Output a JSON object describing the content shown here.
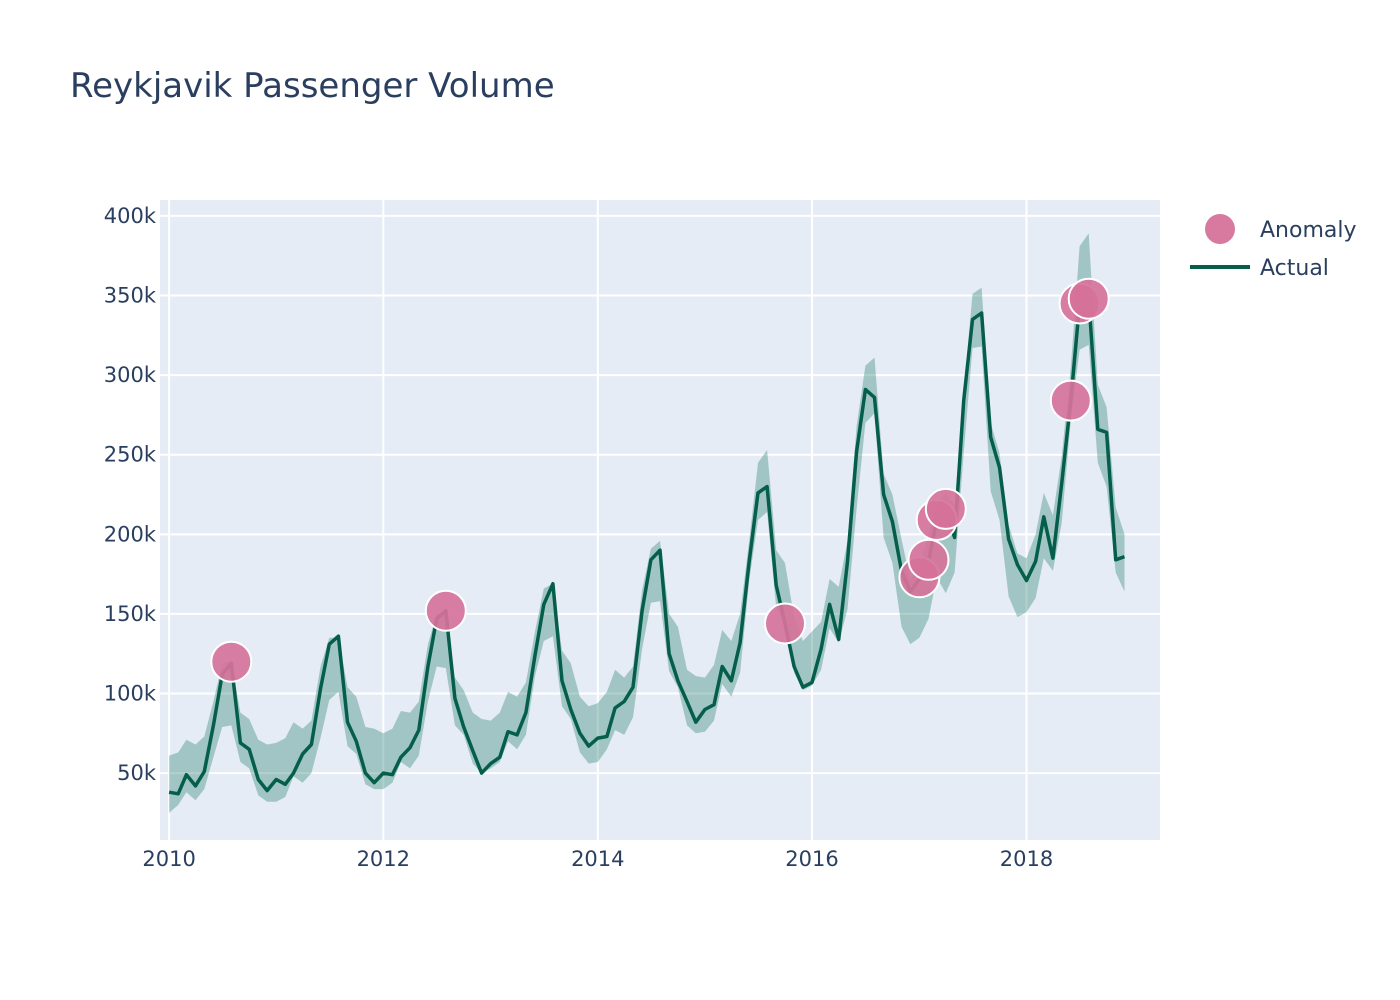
{
  "chart_data": {
    "type": "line",
    "title": "Reykjavik Passenger Volume",
    "xlabel": "",
    "ylabel": "",
    "xlim": [
      "2009-12-01",
      "2019-04-01"
    ],
    "ylim": [
      8000,
      410000
    ],
    "x_ticks": [
      "2010",
      "2012",
      "2014",
      "2016",
      "2018"
    ],
    "y_ticks": [
      {
        "value": 50000,
        "label": "50k"
      },
      {
        "value": 100000,
        "label": "100k"
      },
      {
        "value": 150000,
        "label": "150k"
      },
      {
        "value": 200000,
        "label": "200k"
      },
      {
        "value": 250000,
        "label": "250k"
      },
      {
        "value": 300000,
        "label": "300k"
      },
      {
        "value": 350000,
        "label": "350k"
      },
      {
        "value": 400000,
        "label": "400k"
      }
    ],
    "grid": true,
    "legend_position": "right",
    "legend": [
      {
        "name": "Anomaly",
        "kind": "marker",
        "color": "#d6729a"
      },
      {
        "name": "Actual",
        "kind": "line",
        "color": "#055e4a"
      }
    ],
    "colors": {
      "actual": "#055e4a",
      "band": "#3c8c7e",
      "anomaly": "#d6729a",
      "plot_bg": "#e5ecf6",
      "grid": "#ffffff",
      "text": "#2a3f5f"
    },
    "series": [
      {
        "name": "Actual",
        "kind": "line",
        "x": [
          "2010-01",
          "2010-02",
          "2010-03",
          "2010-04",
          "2010-05",
          "2010-06",
          "2010-07",
          "2010-08",
          "2010-09",
          "2010-10",
          "2010-11",
          "2010-12",
          "2011-01",
          "2011-02",
          "2011-03",
          "2011-04",
          "2011-05",
          "2011-06",
          "2011-07",
          "2011-08",
          "2011-09",
          "2011-10",
          "2011-11",
          "2011-12",
          "2012-01",
          "2012-02",
          "2012-03",
          "2012-04",
          "2012-05",
          "2012-06",
          "2012-07",
          "2012-08",
          "2012-09",
          "2012-10",
          "2012-11",
          "2012-12",
          "2013-01",
          "2013-02",
          "2013-03",
          "2013-04",
          "2013-05",
          "2013-06",
          "2013-07",
          "2013-08",
          "2013-09",
          "2013-10",
          "2013-11",
          "2013-12",
          "2014-01",
          "2014-02",
          "2014-03",
          "2014-04",
          "2014-05",
          "2014-06",
          "2014-07",
          "2014-08",
          "2014-09",
          "2014-10",
          "2014-11",
          "2014-12",
          "2015-01",
          "2015-02",
          "2015-03",
          "2015-04",
          "2015-05",
          "2015-06",
          "2015-07",
          "2015-08",
          "2015-09",
          "2015-10",
          "2015-11",
          "2015-12",
          "2016-01",
          "2016-02",
          "2016-03",
          "2016-04",
          "2016-05",
          "2016-06",
          "2016-07",
          "2016-08",
          "2016-09",
          "2016-10",
          "2016-11",
          "2016-12",
          "2017-01",
          "2017-02",
          "2017-03",
          "2017-04",
          "2017-05",
          "2017-06",
          "2017-07",
          "2017-08",
          "2017-09",
          "2017-10",
          "2017-11",
          "2017-12",
          "2018-01",
          "2018-02",
          "2018-03",
          "2018-04",
          "2018-05",
          "2018-06",
          "2018-07",
          "2018-08",
          "2018-09",
          "2018-10",
          "2018-11",
          "2018-12"
        ],
        "y": [
          38000,
          37000,
          49000,
          42000,
          51000,
          80000,
          112000,
          119000,
          69000,
          65000,
          46000,
          39000,
          46000,
          43000,
          50000,
          62000,
          68000,
          103000,
          131000,
          136000,
          82000,
          70000,
          50000,
          44000,
          50000,
          49000,
          60000,
          66000,
          77000,
          117000,
          147000,
          152000,
          97000,
          79000,
          64000,
          50000,
          56000,
          60000,
          76000,
          74000,
          88000,
          124000,
          156000,
          169000,
          108000,
          90000,
          75000,
          67000,
          72000,
          73000,
          91000,
          95000,
          104000,
          152000,
          184000,
          190000,
          125000,
          108000,
          95000,
          82000,
          90000,
          93000,
          117000,
          108000,
          132000,
          183000,
          226000,
          230000,
          168000,
          144000,
          117000,
          104000,
          107000,
          128000,
          156000,
          134000,
          183000,
          252000,
          291000,
          286000,
          225000,
          208000,
          177000,
          164000,
          172000,
          183000,
          209000,
          215000,
          198000,
          284000,
          335000,
          339000,
          261000,
          242000,
          197000,
          181000,
          171000,
          183000,
          211000,
          185000,
          232000,
          284000,
          345000,
          348000,
          266000,
          264000,
          184000,
          186000
        ]
      },
      {
        "name": "Confidence band",
        "kind": "area",
        "upper": [
          61000,
          63000,
          71000,
          68000,
          73000,
          95000,
          119000,
          120000,
          88000,
          84000,
          71000,
          68000,
          69000,
          72000,
          82000,
          78000,
          83000,
          117000,
          135000,
          135000,
          104000,
          98000,
          79000,
          78000,
          75000,
          78000,
          89000,
          88000,
          95000,
          131000,
          150000,
          151000,
          110000,
          102000,
          88000,
          84000,
          83000,
          88000,
          101000,
          98000,
          107000,
          139000,
          166000,
          169000,
          127000,
          119000,
          98000,
          92000,
          94000,
          101000,
          115000,
          110000,
          117000,
          165000,
          191000,
          196000,
          150000,
          142000,
          115000,
          111000,
          110000,
          118000,
          140000,
          133000,
          150000,
          196000,
          245000,
          253000,
          190000,
          182000,
          148000,
          133000,
          139000,
          145000,
          172000,
          167000,
          196000,
          268000,
          306000,
          311000,
          238000,
          225000,
          197000,
          171000,
          181000,
          199000,
          218000,
          226000,
          218000,
          289000,
          351000,
          355000,
          270000,
          251000,
          206000,
          188000,
          185000,
          200000,
          226000,
          212000,
          249000,
          305000,
          381000,
          389000,
          294000,
          280000,
          217000,
          200000
        ],
        "lower": [
          25000,
          30000,
          38000,
          33000,
          40000,
          60000,
          79000,
          80000,
          57000,
          53000,
          36000,
          32000,
          32000,
          35000,
          48000,
          44000,
          50000,
          72000,
          96000,
          101000,
          67000,
          62000,
          43000,
          40000,
          40000,
          44000,
          57000,
          53000,
          61000,
          95000,
          117000,
          116000,
          80000,
          74000,
          56000,
          50000,
          53000,
          57000,
          70000,
          65000,
          74000,
          111000,
          133000,
          136000,
          92000,
          84000,
          63000,
          56000,
          57000,
          65000,
          77000,
          74000,
          85000,
          128000,
          157000,
          158000,
          114000,
          104000,
          80000,
          75000,
          76000,
          83000,
          106000,
          98000,
          113000,
          171000,
          209000,
          214000,
          154000,
          144000,
          113000,
          102000,
          105000,
          115000,
          141000,
          132000,
          153000,
          216000,
          270000,
          276000,
          198000,
          182000,
          142000,
          131000,
          135000,
          147000,
          173000,
          163000,
          176000,
          251000,
          317000,
          318000,
          227000,
          209000,
          161000,
          148000,
          151000,
          160000,
          185000,
          177000,
          207000,
          272000,
          316000,
          319000,
          245000,
          230000,
          176000,
          164000
        ]
      },
      {
        "name": "Anomaly",
        "kind": "scatter",
        "x": [
          "2010-08",
          "2012-08",
          "2015-10",
          "2017-01",
          "2017-02",
          "2017-03",
          "2017-04",
          "2018-06",
          "2018-07",
          "2018-08"
        ],
        "y": [
          120000,
          152000,
          144000,
          173000,
          184000,
          209000,
          216000,
          284000,
          345000,
          348000
        ]
      }
    ]
  }
}
